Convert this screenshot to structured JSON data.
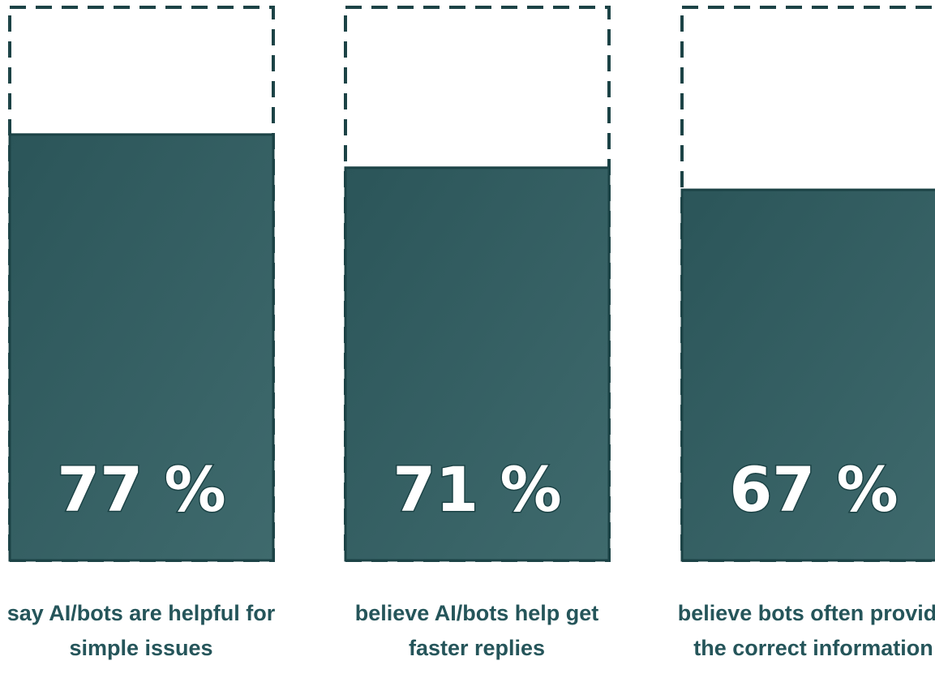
{
  "chart_data": {
    "type": "bar",
    "categories": [
      "say AI/bots are helpful for simple issues",
      "believe AI/bots help get faster replies",
      "believe bots often provide the correct information"
    ],
    "values": [
      77,
      71,
      67
    ],
    "value_labels": [
      "77 %",
      "71 %",
      "67 %"
    ],
    "ylim": [
      0,
      100
    ],
    "title": "",
    "xlabel": "",
    "ylabel": "",
    "grid": false,
    "legend": "none"
  },
  "colors": {
    "bar_fill": "#2b5559",
    "bar_fill_light": "#3f6a6d",
    "outline": "#1c4346",
    "caption_text": "#25555a",
    "value_text": "#ffffff"
  }
}
